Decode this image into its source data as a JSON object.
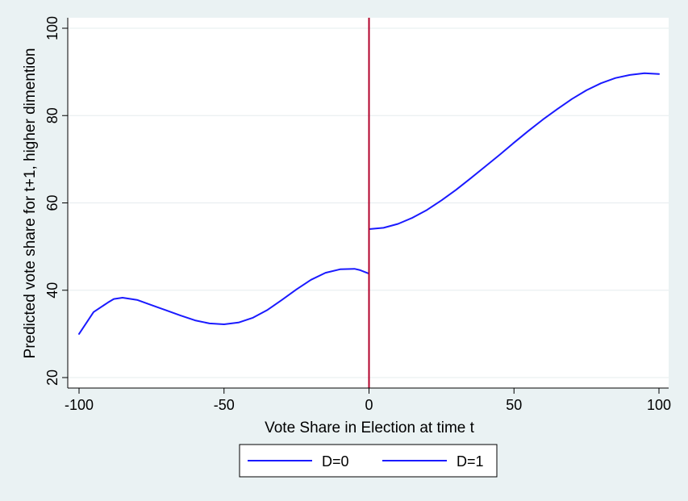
{
  "chart_data": {
    "type": "line",
    "xlabel": "Vote Share in Election at time t",
    "ylabel": "Predicted vote share for t+1, higher dimention",
    "xlim": [
      -100,
      100
    ],
    "ylim": [
      20,
      100
    ],
    "x_ticks": [
      -100,
      -50,
      0,
      50,
      100
    ],
    "y_ticks": [
      20,
      40,
      60,
      80,
      100
    ],
    "grid": true,
    "legend_position": "bottom",
    "vertical_line": {
      "x": 0,
      "color": "#b2002a"
    },
    "series": [
      {
        "name": "D=0",
        "color": "#1a1aff",
        "x": [
          -100,
          -95,
          -90,
          -88,
          -85,
          -80,
          -75,
          -70,
          -65,
          -60,
          -55,
          -50,
          -45,
          -40,
          -35,
          -30,
          -25,
          -20,
          -15,
          -10,
          -5,
          -3,
          0
        ],
        "y": [
          30,
          35,
          37.2,
          38,
          38.3,
          37.8,
          36.6,
          35.4,
          34.2,
          33.1,
          32.4,
          32.2,
          32.6,
          33.7,
          35.5,
          37.8,
          40.2,
          42.4,
          44,
          44.8,
          44.9,
          44.6,
          43.8
        ]
      },
      {
        "name": "D=1",
        "color": "#1a1aff",
        "x": [
          0,
          5,
          10,
          15,
          20,
          25,
          30,
          35,
          40,
          45,
          50,
          55,
          60,
          65,
          70,
          75,
          80,
          85,
          90,
          95,
          100
        ],
        "y": [
          54,
          54.3,
          55.2,
          56.6,
          58.4,
          60.6,
          63,
          65.6,
          68.3,
          71,
          73.8,
          76.5,
          79.1,
          81.5,
          83.8,
          85.8,
          87.4,
          88.6,
          89.3,
          89.7,
          89.5
        ]
      }
    ]
  }
}
